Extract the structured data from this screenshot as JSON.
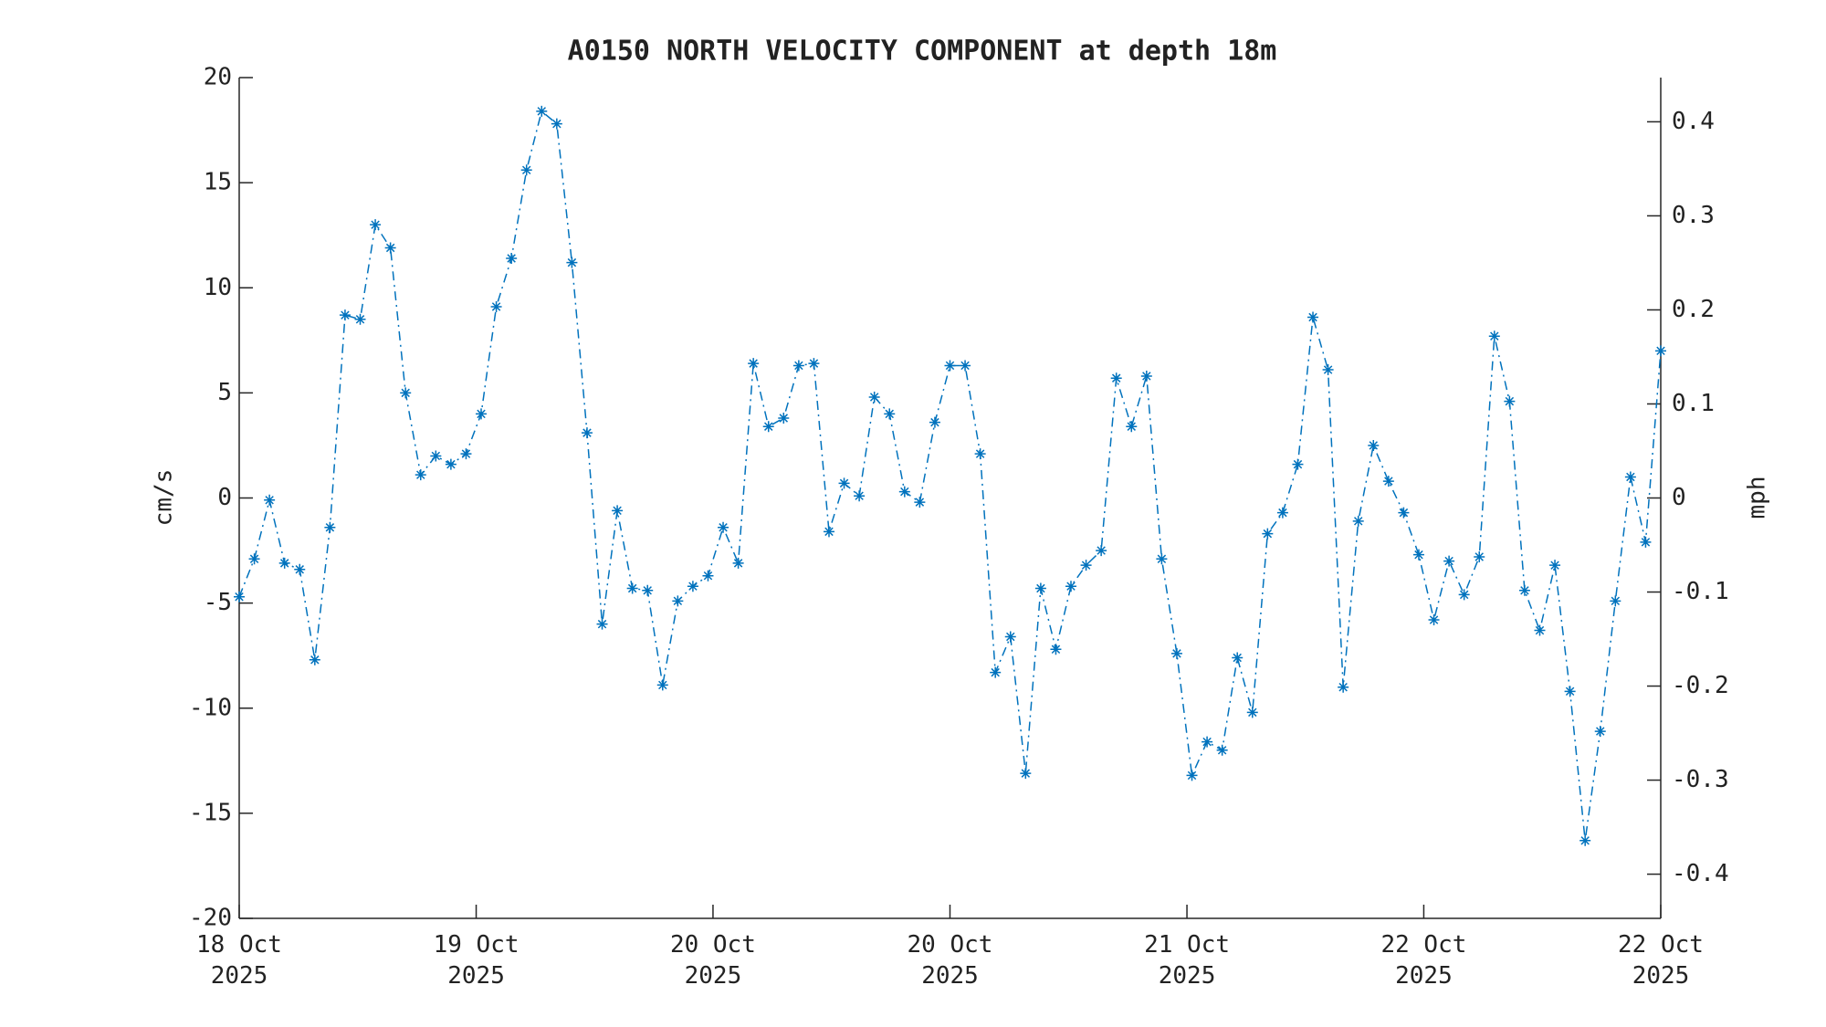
{
  "chart_data": {
    "type": "line",
    "title": "A0150 NORTH VELOCITY COMPONENT at depth 18m",
    "ylabel": "cm/s",
    "y2label": "mph",
    "color": "#0072bd",
    "marker": "asterisk",
    "line_style": "dash-dot",
    "x": [
      0,
      1,
      2,
      3,
      4,
      5,
      6,
      7,
      8,
      9,
      10,
      11,
      12,
      13,
      14,
      15,
      16,
      17,
      18,
      19,
      20,
      21,
      22,
      23,
      24,
      25,
      26,
      27,
      28,
      29,
      30,
      31,
      32,
      33,
      34,
      35,
      36,
      37,
      38,
      39,
      40,
      41,
      42,
      43,
      44,
      45,
      46,
      47,
      48,
      49,
      50,
      51,
      52,
      53,
      54,
      55,
      56,
      57,
      58,
      59,
      60,
      61,
      62,
      63,
      64,
      65,
      66,
      67,
      68,
      69,
      70,
      71,
      72,
      73,
      74,
      75,
      76,
      77,
      78,
      79,
      80,
      81,
      82,
      83,
      84,
      85,
      86,
      87,
      88,
      89,
      90,
      91,
      92,
      93,
      94
    ],
    "values": [
      -4.7,
      -2.9,
      -0.1,
      -3.1,
      -3.4,
      -7.7,
      -1.4,
      8.7,
      8.5,
      13.0,
      11.9,
      5.0,
      1.1,
      2.0,
      1.6,
      2.1,
      4.0,
      9.1,
      11.4,
      15.6,
      18.4,
      17.8,
      11.2,
      3.1,
      -6.0,
      -0.6,
      -4.3,
      -4.4,
      -8.9,
      -4.9,
      -4.2,
      -3.7,
      -1.4,
      -3.1,
      6.4,
      3.4,
      3.8,
      6.3,
      6.4,
      -1.6,
      0.7,
      0.1,
      4.8,
      4.0,
      0.3,
      -0.2,
      3.6,
      6.3,
      6.3,
      2.1,
      -8.3,
      -6.6,
      -13.1,
      -4.3,
      -7.2,
      -4.2,
      -3.2,
      -2.5,
      5.7,
      3.4,
      5.8,
      -2.9,
      -7.4,
      -13.2,
      -11.6,
      -12.0,
      -7.6,
      -10.2,
      -1.7,
      -0.7,
      1.6,
      8.6,
      6.1,
      -9.0,
      -1.1,
      2.5,
      0.8,
      -0.7,
      -2.7,
      -5.8,
      -3.0,
      -4.6,
      -2.8,
      7.7,
      4.6,
      -4.4,
      -6.3,
      -3.2,
      -9.2,
      -16.3,
      -11.1,
      -4.9,
      1.0,
      -2.1,
      7.0
    ],
    "xlim": [
      0,
      94
    ],
    "xticks": [
      {
        "value": 0,
        "label": "18 Oct\n2025"
      },
      {
        "value": 15.67,
        "label": "19 Oct\n2025"
      },
      {
        "value": 31.33,
        "label": "20 Oct\n2025"
      },
      {
        "value": 47,
        "label": "20 Oct\n2025"
      },
      {
        "value": 62.67,
        "label": "21 Oct\n2025"
      },
      {
        "value": 78.33,
        "label": "22 Oct\n2025"
      },
      {
        "value": 94,
        "label": "22 Oct\n2025"
      }
    ],
    "ylim": [
      -20,
      20
    ],
    "yticks": [
      -20,
      -15,
      -10,
      -5,
      0,
      5,
      10,
      15,
      20
    ],
    "y2lim": [
      -0.447,
      0.447
    ],
    "y2ticks": [
      -0.4,
      -0.3,
      -0.2,
      -0.1,
      0,
      0.1,
      0.2,
      0.3,
      0.4
    ]
  }
}
